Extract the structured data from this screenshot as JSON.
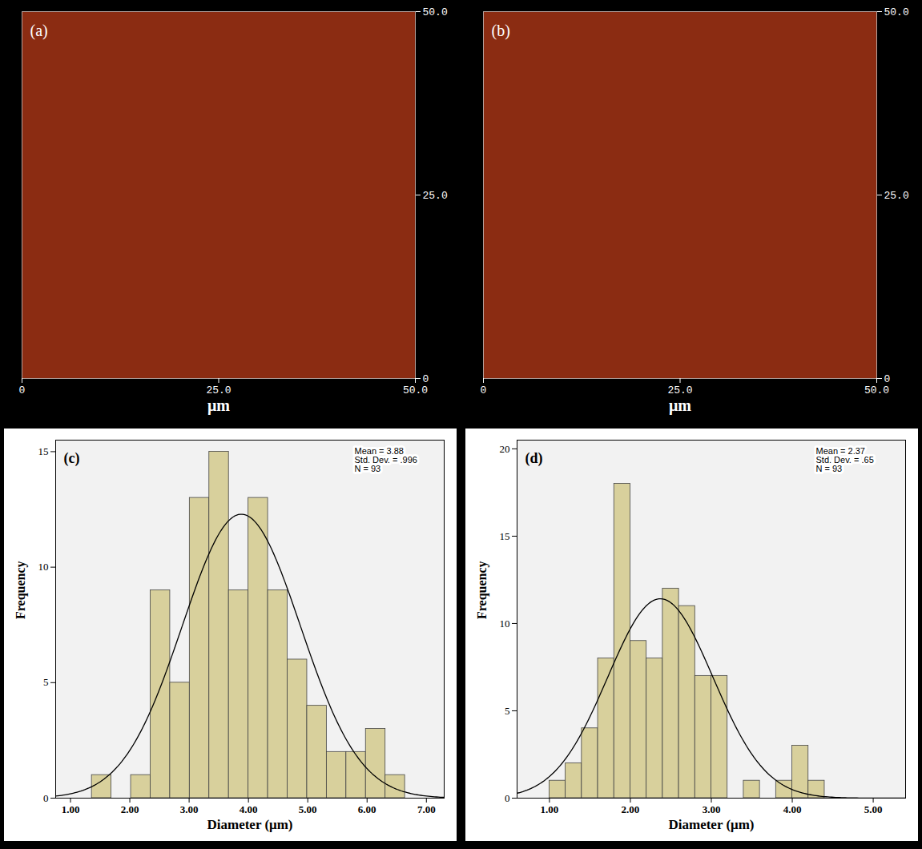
{
  "chart_data": [
    {
      "type": "image",
      "panel": "(a)",
      "xlabel": "μm",
      "color": "#8b2c12",
      "xlim": [
        0,
        50
      ],
      "xticks": [
        0,
        {
          "value": 25,
          "label": "25.0"
        },
        {
          "value": 50,
          "label": "50.0"
        }
      ],
      "ylim": [
        0,
        50
      ],
      "yticks": [
        0,
        {
          "value": 25,
          "label": "25.0"
        },
        {
          "value": 50,
          "label": "50.0"
        }
      ]
    },
    {
      "type": "image",
      "panel": "(b)",
      "xlabel": "μm",
      "color": "#8b2c12",
      "xlim": [
        0,
        50
      ],
      "xticks": [
        0,
        {
          "value": 25,
          "label": "25.0"
        },
        {
          "value": 50,
          "label": "50.0"
        }
      ],
      "ylim": [
        0,
        50
      ],
      "yticks": [
        0,
        {
          "value": 25,
          "label": "25.0"
        },
        {
          "value": 50,
          "label": "50.0"
        }
      ]
    },
    {
      "type": "histogram",
      "panel": "(c)",
      "xlabel": "Diameter (μm)",
      "ylabel": "Frequency",
      "color": "#d8d09c",
      "bins": [
        1.36,
        1.69,
        2.02,
        2.35,
        2.68,
        3.01,
        3.34,
        3.67,
        4.0,
        4.33,
        4.66,
        4.99,
        5.32,
        5.65,
        5.98,
        6.31,
        6.64
      ],
      "values": [
        1,
        0,
        1,
        9,
        5,
        13,
        15,
        9,
        13,
        9,
        6,
        4,
        2,
        2,
        3,
        1
      ],
      "mean": 3.88,
      "std_dev": 0.996,
      "n": 93,
      "stats_text": [
        "Mean = 3.88",
        "Std. Dev. = .996",
        "N = 93"
      ],
      "xlim": [
        0.75,
        7.3
      ],
      "xticks": [
        {
          "value": 1,
          "label": "1.00"
        },
        {
          "value": 2,
          "label": "2.00"
        },
        {
          "value": 3,
          "label": "3.00"
        },
        {
          "value": 4,
          "label": "4.00"
        },
        {
          "value": 5,
          "label": "5.00"
        },
        {
          "value": 6,
          "label": "6.00"
        },
        {
          "value": 7,
          "label": "7.00"
        }
      ],
      "ylim": [
        0,
        15.5
      ],
      "yticks": [
        0,
        5,
        10,
        15
      ]
    },
    {
      "type": "histogram",
      "panel": "(d)",
      "xlabel": "Diameter (μm)",
      "ylabel": "Frequency",
      "color": "#d8d09c",
      "bins": [
        1.0,
        1.2,
        1.4,
        1.6,
        1.8,
        2.0,
        2.2,
        2.4,
        2.6,
        2.8,
        3.0,
        3.2,
        3.4,
        3.6,
        3.8,
        4.0,
        4.2,
        4.4
      ],
      "values": [
        1,
        2,
        4,
        8,
        18,
        9,
        8,
        12,
        11,
        7,
        7,
        0,
        1,
        0,
        1,
        3,
        1
      ],
      "mean": 2.37,
      "std_dev": 0.65,
      "n": 93,
      "stats_text": [
        "Mean = 2.37",
        "Std. Dev. = .65",
        "N = 93"
      ],
      "xlim": [
        0.6,
        5.4
      ],
      "xticks": [
        {
          "value": 1,
          "label": "1.00"
        },
        {
          "value": 2,
          "label": "2.00"
        },
        {
          "value": 3,
          "label": "3.00"
        },
        {
          "value": 4,
          "label": "4.00"
        },
        {
          "value": 5,
          "label": "5.00"
        }
      ],
      "ylim": [
        0,
        20.5
      ],
      "yticks": [
        0,
        5,
        10,
        15,
        20
      ]
    }
  ]
}
